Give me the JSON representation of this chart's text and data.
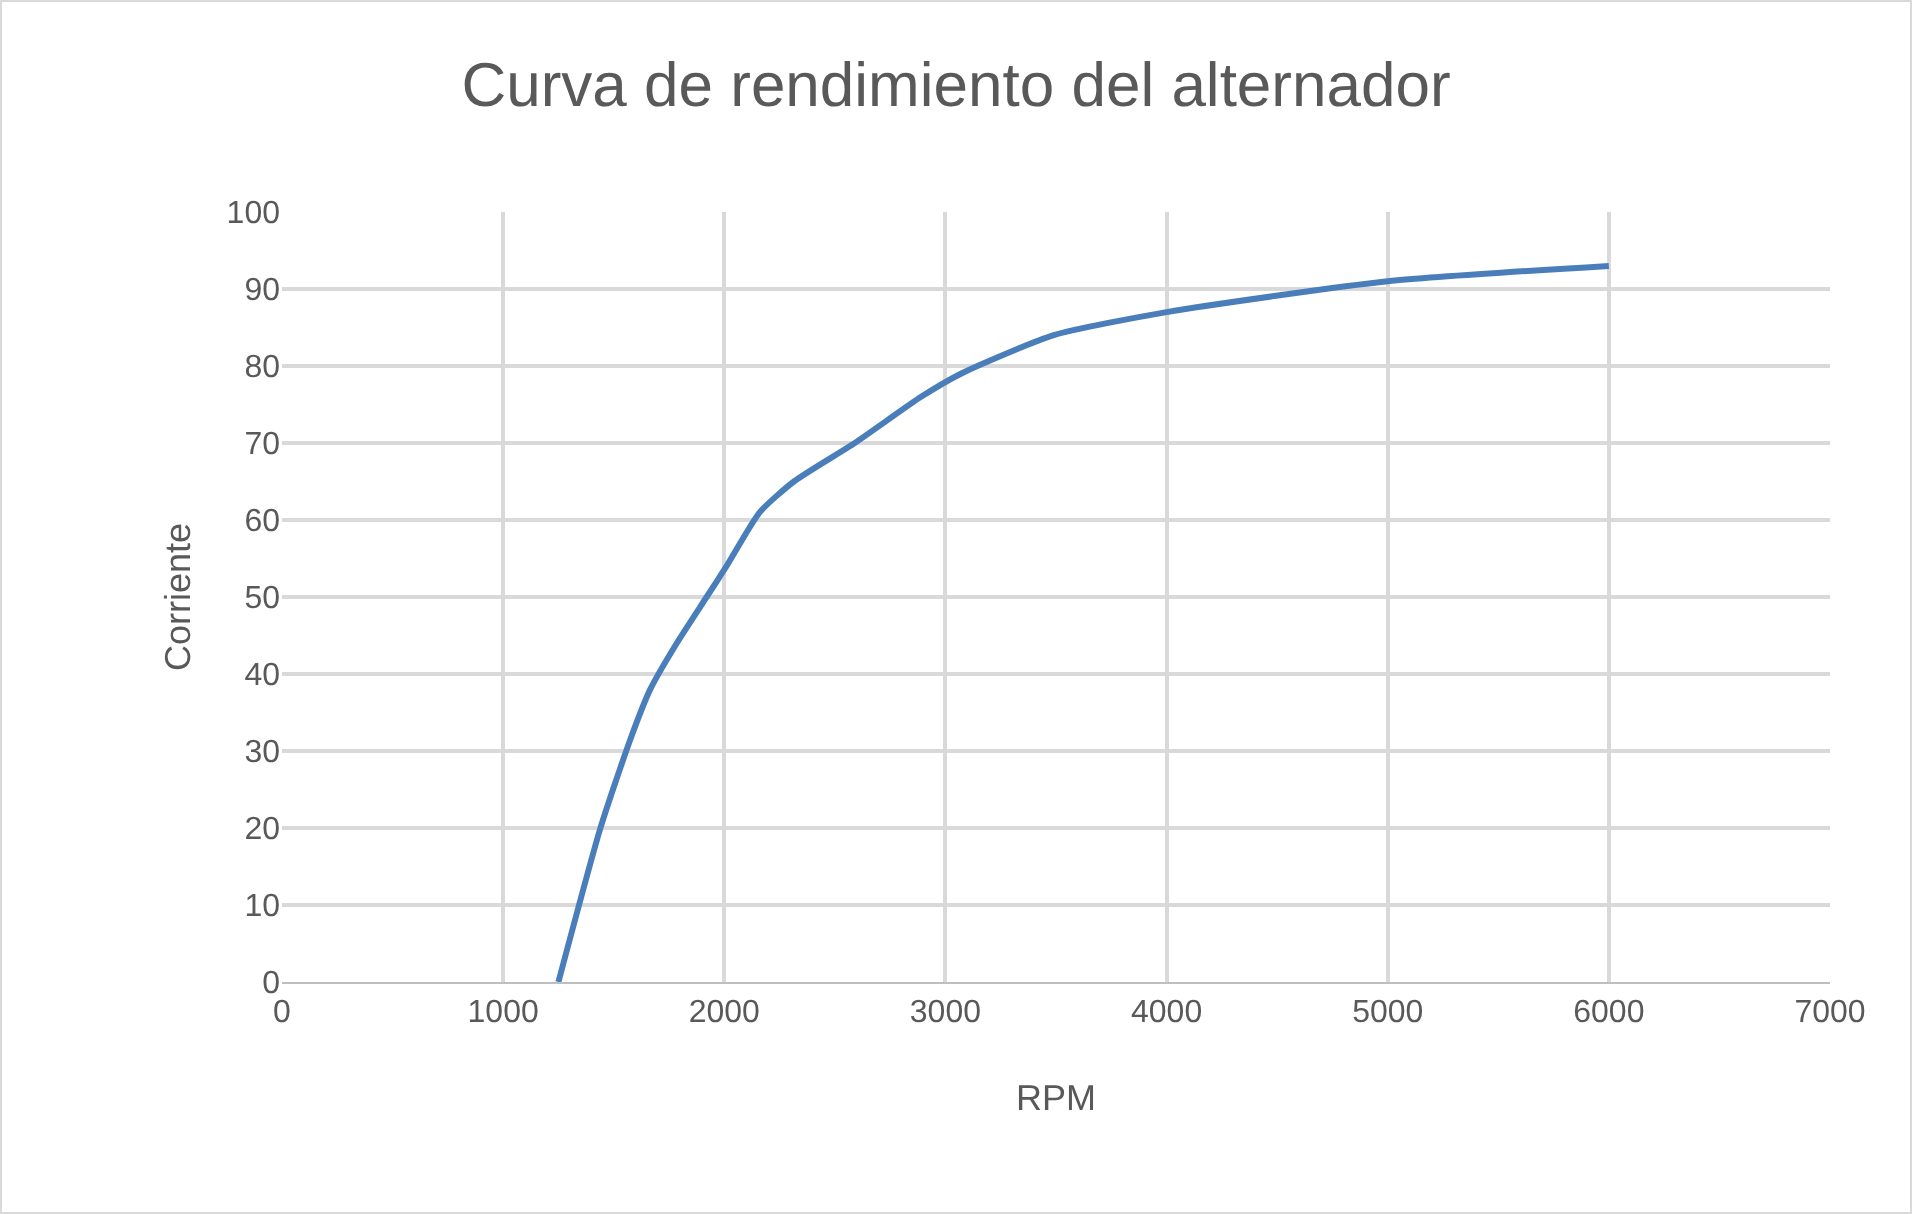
{
  "chart_data": {
    "type": "line",
    "title": "Curva de rendimiento del alternador",
    "xlabel": "RPM",
    "ylabel": "Corriente",
    "x": [
      1250,
      1440,
      1575,
      1665,
      1785,
      1920,
      2010,
      2160,
      2315,
      2590,
      2890,
      3070,
      3490,
      4000,
      5000,
      6000
    ],
    "series": [
      {
        "color": "#4a7ebb",
        "values": [
          0,
          20,
          31.5,
          38,
          44,
          50,
          54,
          61,
          65,
          70,
          76,
          79,
          84,
          87,
          91,
          93
        ]
      }
    ],
    "xlim": [
      0,
      7000
    ],
    "xticks": [
      0,
      1000,
      2000,
      3000,
      4000,
      5000,
      6000,
      7000
    ],
    "ylim": [
      0,
      100
    ],
    "yticks": [
      0,
      10,
      20,
      30,
      40,
      50,
      60,
      70,
      80,
      90,
      100
    ],
    "grid": true,
    "marker": "none",
    "line_style": "solid"
  }
}
